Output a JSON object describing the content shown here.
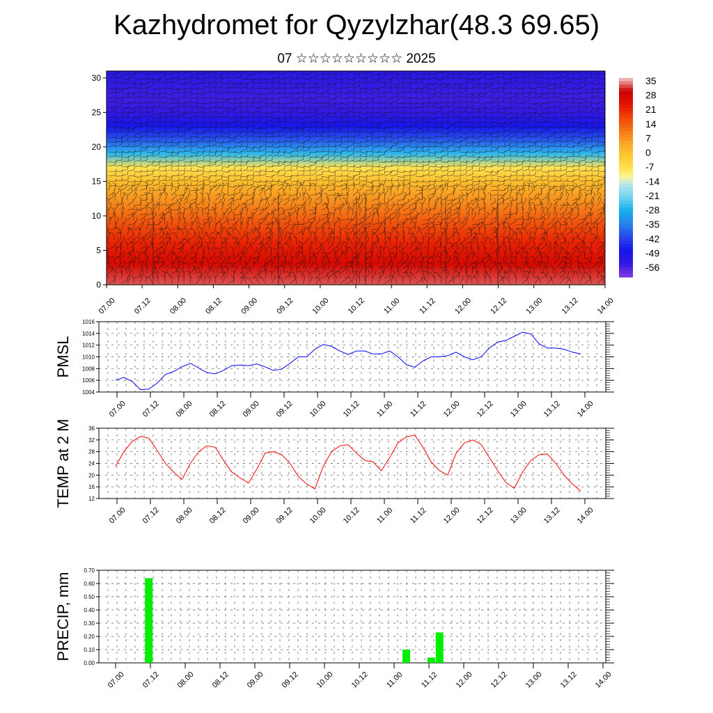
{
  "title": "Kazhydromet for Qyzylzhar(48.3 69.65)",
  "subtitle": "07 ☆☆☆☆☆☆☆☆☆ 2025",
  "chart_data": [
    {
      "type": "heatmap",
      "name": "cross-section",
      "x_ticks": [
        "07.00",
        "07.12",
        "08.00",
        "08.12",
        "09.00",
        "09.12",
        "10.00",
        "10.12",
        "11.00",
        "11.12",
        "12.00",
        "12.12",
        "13.00",
        "13.12",
        "14.00"
      ],
      "y_ticks": [
        0,
        5,
        10,
        15,
        20,
        25,
        30
      ],
      "ylim": [
        0,
        31
      ],
      "colorbar_labels": [
        "35",
        "28",
        "21",
        "14",
        "7",
        "0",
        "-7",
        "-14",
        "-21",
        "-28",
        "-35",
        "-42",
        "-49",
        "-56"
      ],
      "colorbar_range": [
        -63,
        42
      ],
      "vertical_profile": [
        [
          0,
          38
        ],
        [
          3,
          32
        ],
        [
          6,
          26
        ],
        [
          9,
          19
        ],
        [
          12,
          11
        ],
        [
          15,
          3
        ],
        [
          17,
          -6
        ],
        [
          19,
          -26
        ],
        [
          21,
          -40
        ],
        [
          23,
          -50
        ],
        [
          25,
          -56
        ],
        [
          27,
          -57
        ],
        [
          31,
          -54
        ]
      ],
      "wind_barbs": true
    },
    {
      "type": "line",
      "name": "pmsl",
      "ylabel": "PMSL",
      "ylim": [
        1004,
        1016
      ],
      "y_ticks": [
        1004,
        1006,
        1008,
        1010,
        1012,
        1014,
        1016
      ],
      "x_ticks": [
        "07.00",
        "07.12",
        "08.00",
        "08.12",
        "09.00",
        "09.12",
        "10.00",
        "10.12",
        "11.00",
        "11.12",
        "12.00",
        "12.12",
        "13.00",
        "13.12",
        "14.00"
      ],
      "series": [
        {
          "color": "#0000ff",
          "values": [
            1006,
            1006.5,
            1005.8,
            1004.4,
            1004.5,
            1005.5,
            1007,
            1007.5,
            1008.3,
            1008.9,
            1008.1,
            1007.3,
            1007.1,
            1007.7,
            1008.5,
            1008.6,
            1008.5,
            1008.8,
            1008.3,
            1007.7,
            1007.9,
            1008.9,
            1010,
            1010,
            1011.3,
            1012.1,
            1011.8,
            1011,
            1010.4,
            1011,
            1011,
            1010.5,
            1010.5,
            1011,
            1010,
            1008.7,
            1008.2,
            1009.3,
            1010,
            1010,
            1010.2,
            1010.8,
            1010,
            1009.5,
            1010,
            1011.5,
            1012.5,
            1012.8,
            1013.5,
            1014.2,
            1013.9,
            1012.2,
            1011.5,
            1011.5,
            1011.3,
            1010.8,
            1010.5
          ]
        }
      ]
    },
    {
      "type": "line",
      "name": "temp",
      "ylabel": "TEMP at 2 M",
      "ylim": [
        12,
        36
      ],
      "y_ticks": [
        12,
        16,
        20,
        24,
        28,
        32,
        36
      ],
      "x_ticks": [
        "07.00",
        "07.12",
        "08.00",
        "08.12",
        "09.00",
        "09.12",
        "10.00",
        "10.12",
        "11.00",
        "11.12",
        "12.00",
        "12.12",
        "13.00",
        "13.12",
        "14.00"
      ],
      "series": [
        {
          "color": "#ff0000",
          "values": [
            23,
            28,
            31.5,
            33.2,
            32.6,
            28.5,
            24,
            21,
            18.5,
            24,
            28,
            30,
            29.5,
            25,
            21,
            19,
            17.3,
            22,
            27.5,
            28,
            27,
            24,
            19.5,
            17,
            15.3,
            23,
            28,
            30,
            30.4,
            27.5,
            25,
            24.5,
            21.5,
            26,
            31,
            33,
            33.7,
            29.5,
            24.5,
            21.5,
            20,
            27.5,
            31,
            32,
            30.5,
            26,
            21.5,
            17.5,
            15.5,
            21,
            25,
            27,
            27.2,
            24,
            20,
            17,
            14.5
          ]
        }
      ]
    },
    {
      "type": "bar",
      "name": "precip",
      "ylabel": "PRECIP, mm",
      "ylim": [
        0,
        0.7
      ],
      "y_ticks": [
        "0.00",
        "0.10",
        "0.20",
        "0.30",
        "0.40",
        "0.50",
        "0.60",
        "0.70"
      ],
      "x_ticks": [
        "07.00",
        "07.12",
        "08.00",
        "08.12",
        "09.00",
        "09.12",
        "10.00",
        "10.12",
        "11.00",
        "11.12",
        "12.00",
        "12.12",
        "13.00",
        "13.12",
        "14.00"
      ],
      "bars": [
        {
          "x": 4,
          "value": 0.64
        },
        {
          "x": 35,
          "value": 0.1
        },
        {
          "x": 38,
          "value": 0.04
        },
        {
          "x": 39,
          "value": 0.23
        }
      ],
      "color": "#00ee00"
    }
  ]
}
